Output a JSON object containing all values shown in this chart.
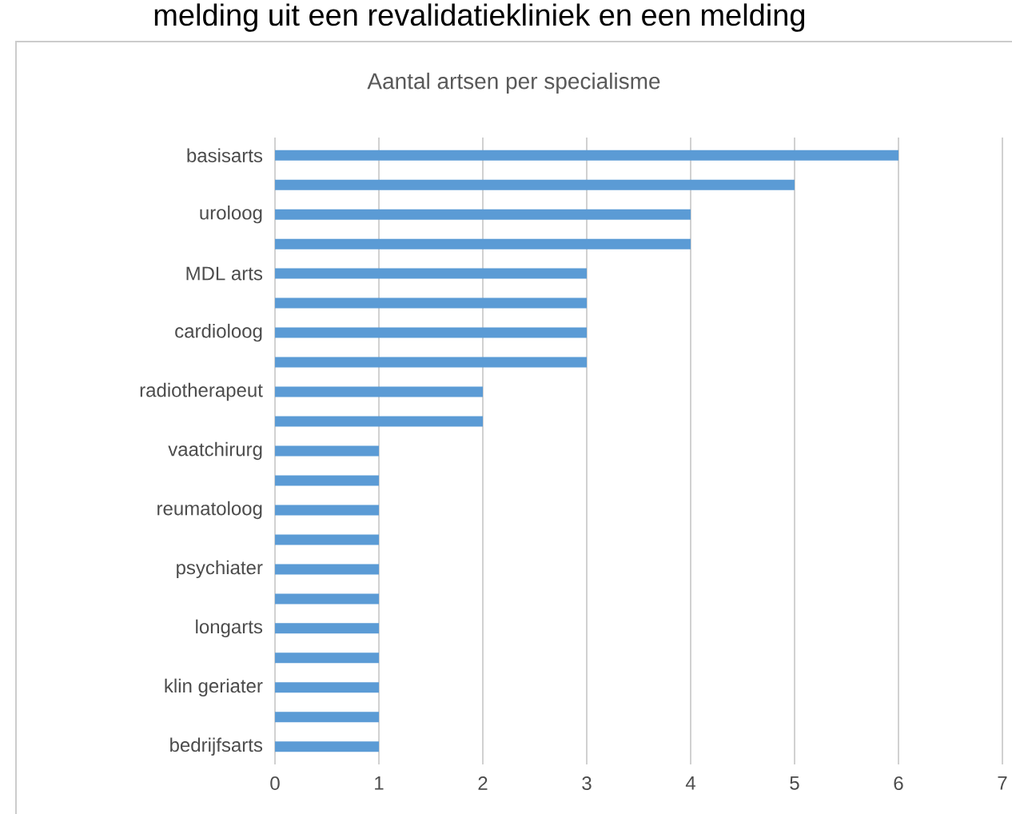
{
  "chart_data": {
    "type": "bar",
    "orientation": "horizontal",
    "title": "Aantal artsen per specialisme",
    "annotations": [
      "melding uit een revalidatiekliniek en een melding"
    ],
    "categories": [
      "basisarts",
      null,
      "uroloog",
      null,
      "MDL arts",
      null,
      "cardioloog",
      null,
      "radiotherapeut",
      null,
      "vaatchirurg",
      null,
      "reumatoloog",
      null,
      "psychiater",
      null,
      "longarts",
      null,
      "klin geriater",
      null,
      "bedrijfsarts"
    ],
    "values": [
      6,
      5,
      4,
      4,
      3,
      3,
      3,
      3,
      2,
      2,
      1,
      1,
      1,
      1,
      1,
      1,
      1,
      1,
      1,
      1,
      1
    ],
    "color": "#5b9bd5",
    "xlim": [
      0,
      7
    ],
    "xticks": [
      0,
      1,
      2,
      3,
      4,
      5,
      6,
      7
    ],
    "grid": "x"
  }
}
